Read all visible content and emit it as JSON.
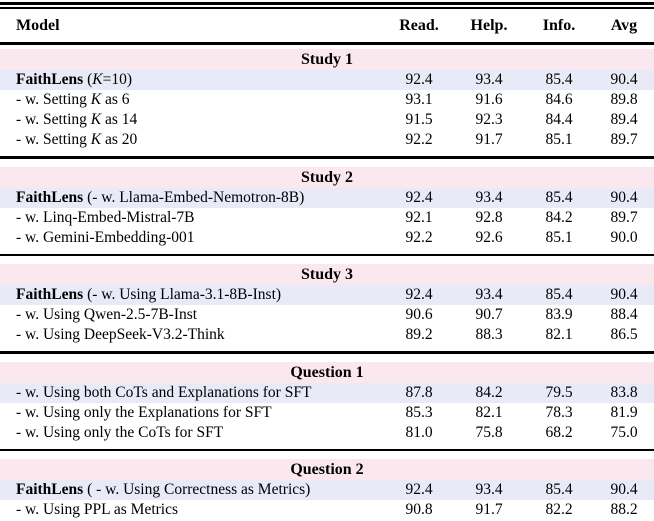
{
  "table": {
    "header": {
      "columns": [
        "Model",
        "Read.",
        "Help.",
        "Info.",
        "Avg"
      ]
    },
    "colors": {
      "section_band": "#fbe8ee",
      "highlight_row": "#e9eaf8",
      "rule": "#000000",
      "text": "#000000"
    },
    "sections": [
      {
        "title": "Study 1",
        "rows": [
          {
            "segments": [
              {
                "t": "FaithLens",
                "s": "b"
              },
              {
                "t": " (",
                "s": ""
              },
              {
                "t": "K",
                "s": "i"
              },
              {
                "t": "=10)",
                "s": ""
              }
            ],
            "values": [
              "92.4",
              "93.4",
              "85.4",
              "90.4"
            ],
            "highlight": true
          },
          {
            "segments": [
              {
                "t": "- w. Setting ",
                "s": ""
              },
              {
                "t": "K",
                "s": "i"
              },
              {
                "t": " as 6",
                "s": ""
              }
            ],
            "values": [
              "93.1",
              "91.6",
              "84.6",
              "89.8"
            ],
            "highlight": false
          },
          {
            "segments": [
              {
                "t": "- w. Setting ",
                "s": ""
              },
              {
                "t": "K",
                "s": "i"
              },
              {
                "t": " as 14",
                "s": ""
              }
            ],
            "values": [
              "91.5",
              "92.3",
              "84.4",
              "89.4"
            ],
            "highlight": false
          },
          {
            "segments": [
              {
                "t": "- w. Setting ",
                "s": ""
              },
              {
                "t": "K",
                "s": "i"
              },
              {
                "t": " as 20",
                "s": ""
              }
            ],
            "values": [
              "92.2",
              "91.7",
              "85.1",
              "89.7"
            ],
            "highlight": false
          }
        ]
      },
      {
        "title": "Study 2",
        "rows": [
          {
            "segments": [
              {
                "t": "FaithLens",
                "s": "b"
              },
              {
                "t": " (- w. Llama-Embed-Nemotron-8B)",
                "s": ""
              }
            ],
            "values": [
              "92.4",
              "93.4",
              "85.4",
              "90.4"
            ],
            "highlight": true
          },
          {
            "segments": [
              {
                "t": "- w. Linq-Embed-Mistral-7B",
                "s": ""
              }
            ],
            "values": [
              "92.1",
              "92.8",
              "84.2",
              "89.7"
            ],
            "highlight": false
          },
          {
            "segments": [
              {
                "t": "- w. Gemini-Embedding-001",
                "s": ""
              }
            ],
            "values": [
              "92.2",
              "92.6",
              "85.1",
              "90.0"
            ],
            "highlight": false
          }
        ]
      },
      {
        "title": "Study 3",
        "rows": [
          {
            "segments": [
              {
                "t": "FaithLens",
                "s": "b"
              },
              {
                "t": " (- w. Using Llama-3.1-8B-Inst)",
                "s": ""
              }
            ],
            "values": [
              "92.4",
              "93.4",
              "85.4",
              "90.4"
            ],
            "highlight": true
          },
          {
            "segments": [
              {
                "t": "- w. Using Qwen-2.5-7B-Inst",
                "s": ""
              }
            ],
            "values": [
              "90.6",
              "90.7",
              "83.9",
              "88.4"
            ],
            "highlight": false
          },
          {
            "segments": [
              {
                "t": "- w. Using DeepSeek-V3.2-Think",
                "s": ""
              }
            ],
            "values": [
              "89.2",
              "88.3",
              "82.1",
              "86.5"
            ],
            "highlight": false
          }
        ]
      },
      {
        "title": "Question 1",
        "rows": [
          {
            "segments": [
              {
                "t": "- w. Using both CoTs and Explanations for SFT",
                "s": ""
              }
            ],
            "values": [
              "87.8",
              "84.2",
              "79.5",
              "83.8"
            ],
            "highlight": true
          },
          {
            "segments": [
              {
                "t": "- w. Using only the Explanations for SFT",
                "s": ""
              }
            ],
            "values": [
              "85.3",
              "82.1",
              "78.3",
              "81.9"
            ],
            "highlight": false
          },
          {
            "segments": [
              {
                "t": "- w. Using only the CoTs for SFT",
                "s": ""
              }
            ],
            "values": [
              "81.0",
              "75.8",
              "68.2",
              "75.0"
            ],
            "highlight": false
          }
        ]
      },
      {
        "title": "Question 2",
        "rows": [
          {
            "segments": [
              {
                "t": "FaithLens",
                "s": "b"
              },
              {
                "t": " ( - w. Using Correctness as Metrics)",
                "s": ""
              }
            ],
            "values": [
              "92.4",
              "93.4",
              "85.4",
              "90.4"
            ],
            "highlight": true
          },
          {
            "segments": [
              {
                "t": "- w. Using PPL as Metrics",
                "s": ""
              }
            ],
            "values": [
              "90.8",
              "91.7",
              "82.2",
              "88.2"
            ],
            "highlight": false
          }
        ]
      }
    ]
  }
}
